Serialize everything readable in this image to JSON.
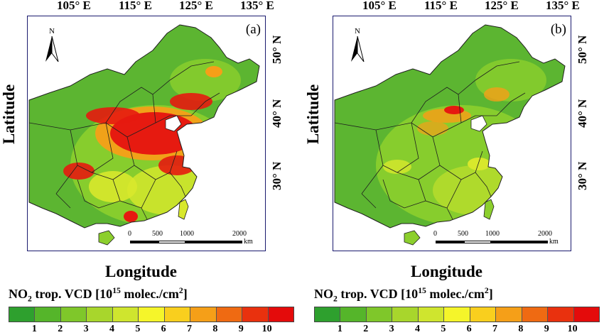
{
  "longitude_ticks": [
    "105° E",
    "115° E",
    "125° E",
    "135° E"
  ],
  "latitude_ticks": [
    "50° N",
    "40° N",
    "30° N"
  ],
  "panels": [
    {
      "tag": "(a)",
      "high_pollution": true
    },
    {
      "tag": "(b)",
      "high_pollution": false
    }
  ],
  "north_label": "N",
  "scale_bar": {
    "ticks": [
      "0",
      "500",
      "1000",
      "2000"
    ],
    "unit": "km"
  },
  "axis_titles": {
    "latitude": "Latitude",
    "longitude": "Longitude"
  },
  "legend": {
    "title_prefix": "NO",
    "title_sub": "2",
    "title_mid": " trop. VCD  [10",
    "title_sup": "15",
    "title_post": " molec./cm",
    "title_sup2": "2",
    "title_end": "]",
    "values": [
      "1",
      "2",
      "3",
      "4",
      "5",
      "6",
      "7",
      "8",
      "9",
      "10"
    ],
    "colors": [
      "#2ea02e",
      "#55b52a",
      "#7fc72a",
      "#a8d62c",
      "#cfe52e",
      "#f5f52a",
      "#f9cf1e",
      "#f59f18",
      "#ef6a12",
      "#e9310e",
      "#e40b0b"
    ]
  },
  "map_colors": {
    "land_base": "#5cb531",
    "land_mid": "#8ccf2d",
    "land_yellow": "#d8e82c",
    "orange": "#f59f18",
    "red": "#e61a10",
    "border": "#1f1f1f"
  }
}
